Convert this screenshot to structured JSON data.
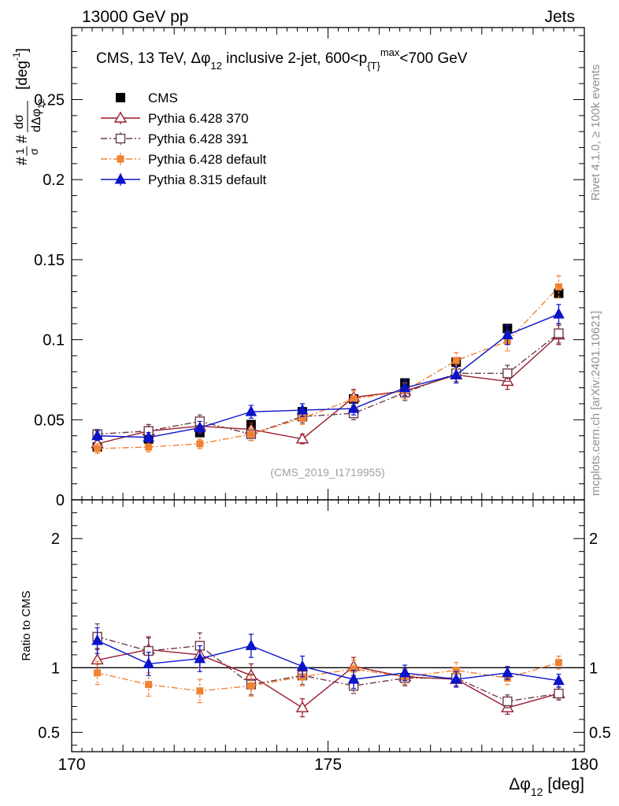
{
  "header": {
    "left": "13000 GeV pp",
    "right": "Jets"
  },
  "title": {
    "main": "CMS, 13 TeV, Δφ",
    "sub12": "12",
    "tail_a": " inclusive 2-jet, 600<p",
    "subT": "{T}",
    "supmax": "max",
    "tail_b": "<700 GeV"
  },
  "ylabel": {
    "prefix": "#",
    "frac1_num": "1",
    "frac1_den": "σ",
    "hash2": "#",
    "frac2_num": "dσ",
    "frac2_den": "dΔφ",
    "den_sub": "12",
    "unit": "[deg",
    "unit_sup": "-1",
    "unit_close": "]"
  },
  "xlabel": {
    "main": "Δφ",
    "sub": "12",
    "unit": " [deg]"
  },
  "ratio_ylabel": "Ratio to CMS",
  "watermark": "(CMS_2019_I1719955)",
  "side_top": "Rivet 4.1.0, ≥ 100k events",
  "side_bottom": "mcplots.cern.ch [arXiv:2401.10621]",
  "chart_data": {
    "type": "scatter",
    "x": [
      170.5,
      171.5,
      172.5,
      173.5,
      174.5,
      175.5,
      176.5,
      177.5,
      178.5,
      179.5
    ],
    "xlim": [
      170,
      180
    ],
    "xticks": [
      170,
      175,
      180
    ],
    "xtick_labels": [
      "170",
      "175",
      "180"
    ],
    "main_ylim": [
      0,
      0.295
    ],
    "main_yticks": [
      0,
      0.05,
      0.1,
      0.15,
      0.2,
      0.25
    ],
    "main_ytick_labels": [
      "0",
      "0.05",
      "0.1",
      "0.15",
      "0.2",
      "0.25"
    ],
    "ratio_ylim": [
      0.35,
      2.3
    ],
    "ratio_yticks": [
      0.5,
      1,
      2
    ],
    "ratio_ytick_labels": [
      "0.5",
      "1",
      "2"
    ],
    "reference": {
      "name": "CMS",
      "color": "#000000",
      "values": [
        0.033,
        0.038,
        0.042,
        0.047,
        0.055,
        0.063,
        0.073,
        0.086,
        0.107,
        0.129
      ],
      "errors": [
        0.001,
        0.001,
        0.001,
        0.001,
        0.001,
        0.001,
        0.001,
        0.002,
        0.002,
        0.003
      ]
    },
    "series": [
      {
        "name": "Pythia 6.428 370",
        "color": "#9a1a2c",
        "marker": "triangle-open",
        "dash": "none",
        "values": [
          0.035,
          0.043,
          0.046,
          0.044,
          0.038,
          0.064,
          0.068,
          0.078,
          0.074,
          0.103
        ],
        "errors": [
          0.003,
          0.004,
          0.004,
          0.004,
          0.003,
          0.005,
          0.005,
          0.005,
          0.005,
          0.006
        ],
        "ratio": [
          1.06,
          1.14,
          1.1,
          0.94,
          0.69,
          1.01,
          0.93,
          0.91,
          0.69,
          0.8
        ],
        "ratio_err": [
          0.09,
          0.1,
          0.1,
          0.09,
          0.07,
          0.07,
          0.06,
          0.06,
          0.05,
          0.05
        ]
      },
      {
        "name": "Pythia 6.428 391",
        "color": "#6e3a4a",
        "marker": "square-open",
        "dash": "8,3,2,3",
        "values": [
          0.041,
          0.043,
          0.049,
          0.041,
          0.052,
          0.054,
          0.067,
          0.079,
          0.079,
          0.104
        ],
        "errors": [
          0.003,
          0.004,
          0.004,
          0.004,
          0.004,
          0.004,
          0.005,
          0.005,
          0.005,
          0.006
        ],
        "ratio": [
          1.24,
          1.13,
          1.17,
          0.87,
          0.94,
          0.86,
          0.92,
          0.92,
          0.74,
          0.8
        ],
        "ratio_err": [
          0.1,
          0.1,
          0.1,
          0.08,
          0.07,
          0.06,
          0.06,
          0.06,
          0.05,
          0.05
        ]
      },
      {
        "name": "Pythia 6.428 default",
        "color": "#f08232",
        "marker": "square-filled-small",
        "dash": "8,3,2,3",
        "values": [
          0.032,
          0.033,
          0.035,
          0.041,
          0.051,
          0.063,
          0.068,
          0.087,
          0.099,
          0.133
        ],
        "errors": [
          0.003,
          0.003,
          0.003,
          0.004,
          0.004,
          0.005,
          0.005,
          0.005,
          0.006,
          0.007
        ],
        "ratio": [
          0.96,
          0.87,
          0.82,
          0.86,
          0.93,
          0.99,
          0.93,
          0.98,
          0.92,
          1.04
        ],
        "ratio_err": [
          0.09,
          0.09,
          0.09,
          0.08,
          0.07,
          0.07,
          0.06,
          0.06,
          0.05,
          0.05
        ]
      },
      {
        "name": "Pythia 8.315 default",
        "color": "#0a14c8",
        "marker": "triangle-filled",
        "dash": "none",
        "values": [
          0.04,
          0.039,
          0.045,
          0.055,
          0.056,
          0.057,
          0.07,
          0.078,
          0.103,
          0.116
        ],
        "errors": [
          0.003,
          0.003,
          0.004,
          0.004,
          0.004,
          0.004,
          0.005,
          0.005,
          0.006,
          0.006
        ],
        "ratio": [
          1.21,
          1.03,
          1.07,
          1.17,
          1.01,
          0.91,
          0.96,
          0.91,
          0.96,
          0.9
        ],
        "ratio_err": [
          0.1,
          0.09,
          0.1,
          0.09,
          0.08,
          0.07,
          0.06,
          0.06,
          0.05,
          0.05
        ]
      }
    ]
  }
}
